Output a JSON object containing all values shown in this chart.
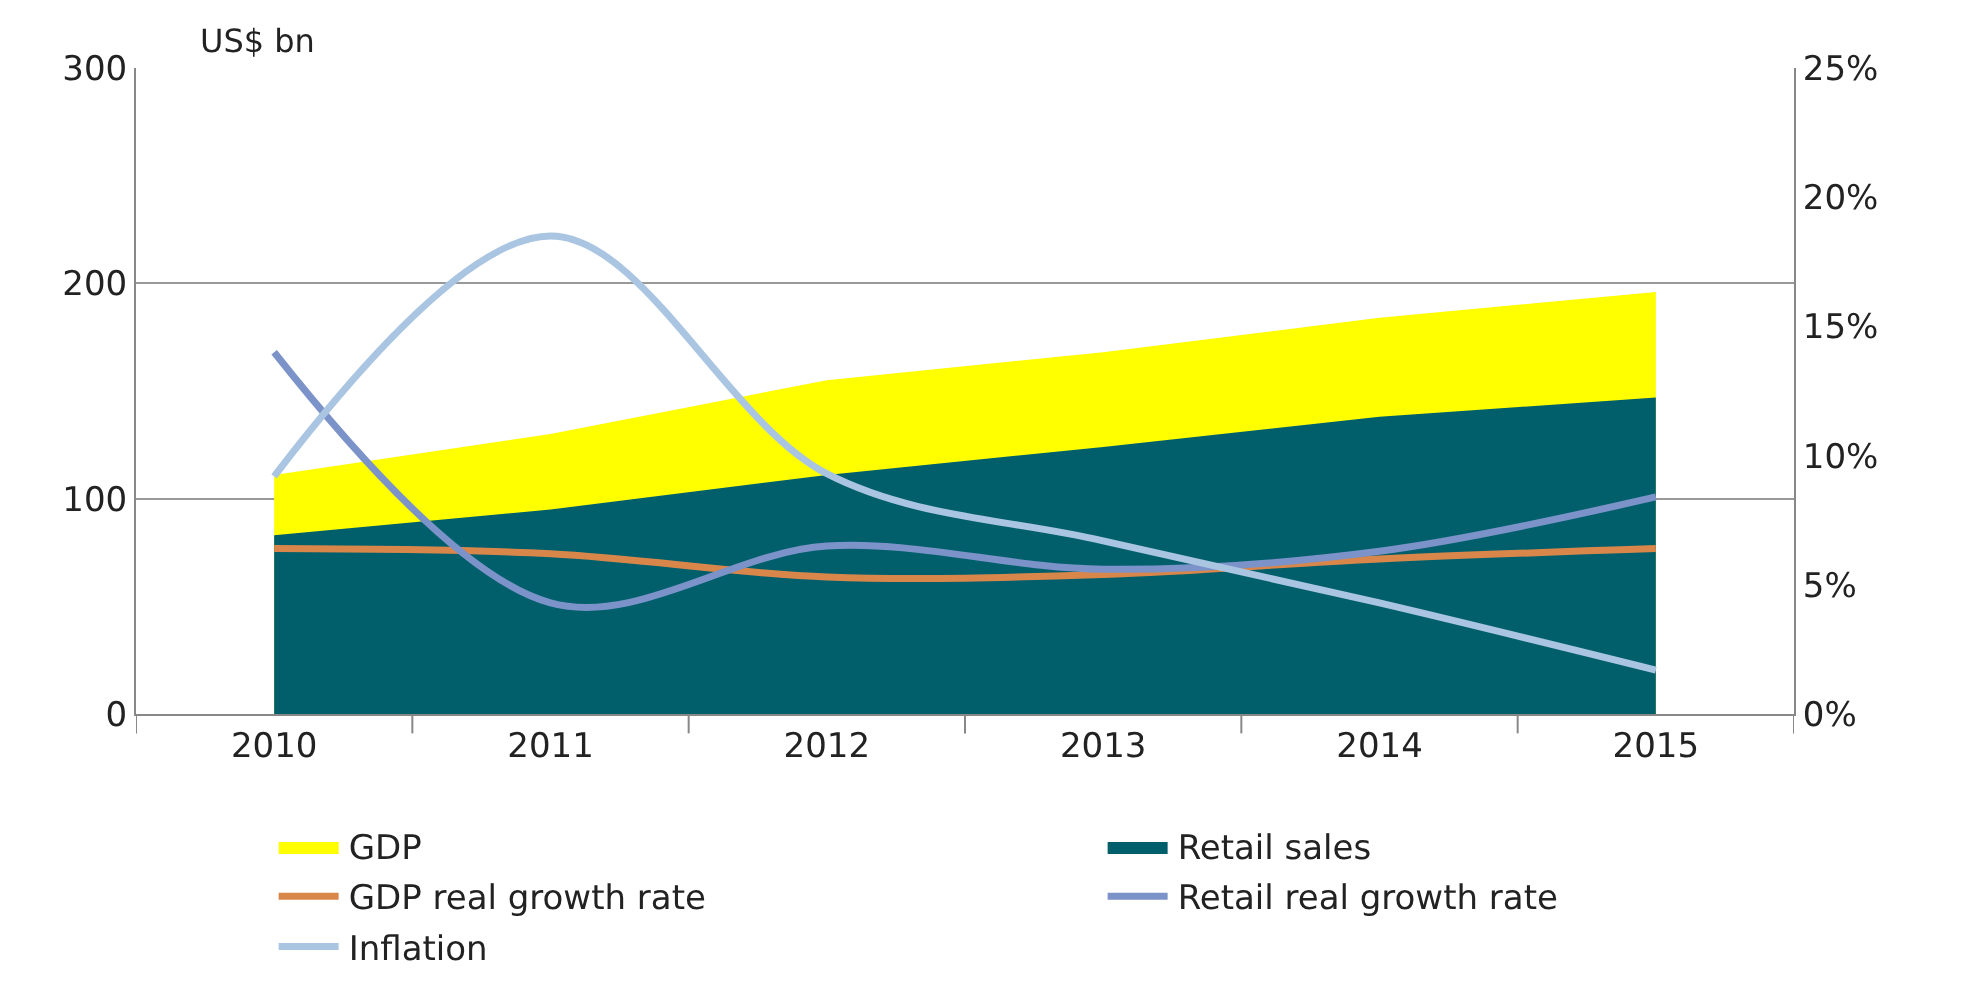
{
  "chart_data": {
    "type": "area",
    "ylabel": "US$ bn",
    "categories": [
      "2010",
      "2011",
      "2012",
      "2013",
      "2014",
      "2015"
    ],
    "series": [
      {
        "name": "GDP",
        "color": "#ffff00",
        "values": [
          111,
          130,
          155,
          168,
          184,
          196
        ]
      },
      {
        "name": "Retail sales",
        "color": "#005f6b",
        "values": [
          83,
          95,
          111,
          124,
          138,
          147
        ]
      },
      {
        "name": "GDP real growth rate",
        "type": "line",
        "axis": "y2",
        "color": "#d9864a",
        "values": [
          6.4,
          6.2,
          5.3,
          5.4,
          6.0,
          6.4
        ]
      },
      {
        "name": "Retail real growth rate",
        "type": "line",
        "axis": "y2",
        "color": "#7b93c8",
        "values": [
          14.0,
          4.3,
          6.5,
          5.6,
          6.3,
          8.4
        ]
      },
      {
        "name": "Inflation",
        "type": "line",
        "axis": "y2",
        "color": "#a9c5e2",
        "values": [
          9.2,
          18.5,
          9.3,
          6.7,
          4.3,
          1.7
        ]
      }
    ],
    "ylim": [
      0,
      300
    ],
    "yticks": [
      0,
      100,
      200,
      300
    ],
    "y2lim": [
      0,
      25
    ],
    "y2ticks": [
      {
        "value": 0,
        "label": "0%"
      },
      {
        "value": 5,
        "label": "5%"
      },
      {
        "value": 10,
        "label": "10%"
      },
      {
        "value": 15,
        "label": "15%"
      },
      {
        "value": 20,
        "label": "20%"
      },
      {
        "value": 25,
        "label": "25%"
      }
    ],
    "grid": "y",
    "legend": "bottom",
    "marker": "none",
    "line_style": "solid"
  }
}
